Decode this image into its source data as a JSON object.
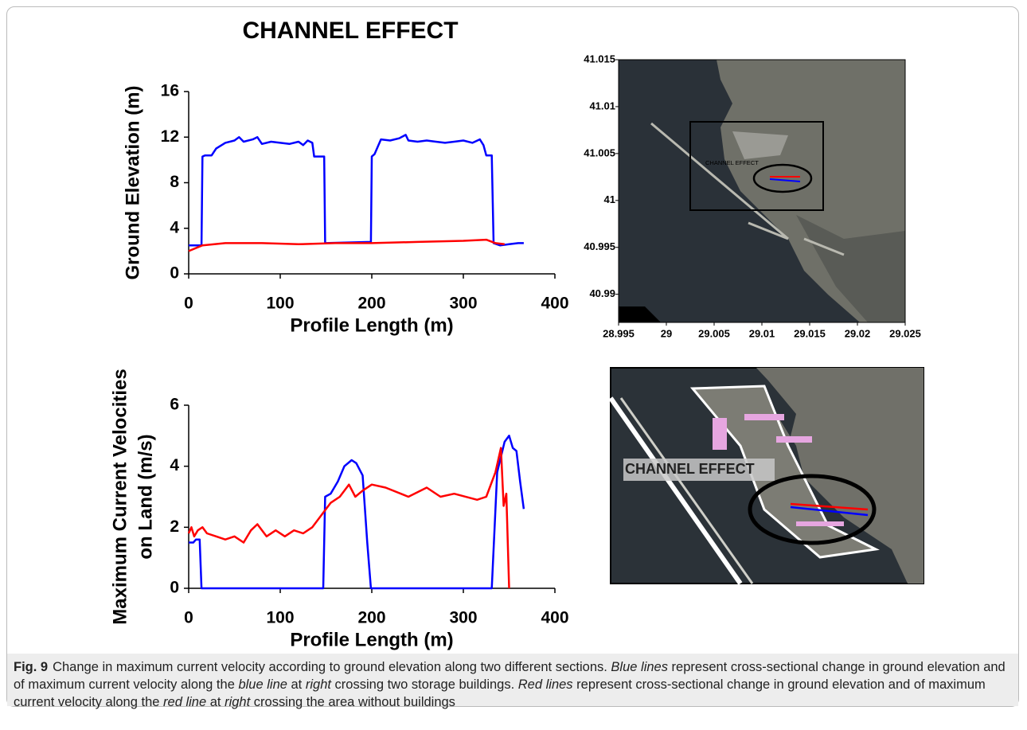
{
  "chart_data": [
    {
      "type": "line",
      "title": "CHANNEL EFFECT",
      "xlabel": "Profile Length (m)",
      "ylabel": [
        "Ground Elevation (m)"
      ],
      "xlim": [
        0,
        400
      ],
      "xticks": [
        0,
        100,
        200,
        300,
        400
      ],
      "ylim": [
        0,
        16
      ],
      "yticks": [
        0,
        4,
        8,
        12,
        16
      ],
      "series": [
        {
          "color": "#0000ff",
          "x": [
            0,
            14,
            15,
            18,
            25,
            30,
            40,
            50,
            55,
            60,
            70,
            75,
            80,
            90,
            100,
            110,
            120,
            125,
            130,
            135,
            137,
            148,
            149,
            199,
            200,
            203,
            210,
            220,
            230,
            237,
            240,
            250,
            260,
            270,
            280,
            290,
            300,
            310,
            318,
            322,
            325,
            331,
            333,
            340,
            350,
            360,
            366
          ],
          "values": [
            2.5,
            2.5,
            10.3,
            10.4,
            10.4,
            11.0,
            11.5,
            11.7,
            12.0,
            11.6,
            11.8,
            12.0,
            11.4,
            11.6,
            11.5,
            11.4,
            11.6,
            11.3,
            11.7,
            11.5,
            10.3,
            10.3,
            2.7,
            2.8,
            10.3,
            10.5,
            11.8,
            11.7,
            11.9,
            12.2,
            11.7,
            11.6,
            11.7,
            11.6,
            11.5,
            11.6,
            11.7,
            11.5,
            11.8,
            11.3,
            10.4,
            10.4,
            2.7,
            2.5,
            2.6,
            2.7,
            2.7
          ]
        },
        {
          "color": "#ff0000",
          "x": [
            0,
            15,
            40,
            80,
            120,
            160,
            200,
            250,
            300,
            325,
            335,
            345
          ],
          "values": [
            2.0,
            2.5,
            2.7,
            2.7,
            2.6,
            2.7,
            2.7,
            2.8,
            2.9,
            3.0,
            2.7,
            2.6
          ]
        }
      ]
    },
    {
      "type": "line",
      "xlabel": "Profile Length (m)",
      "ylabel": [
        "Maximum Current Velocities",
        "on Land (m/s)"
      ],
      "xlim": [
        0,
        400
      ],
      "xticks": [
        0,
        100,
        200,
        300,
        400
      ],
      "ylim": [
        0,
        6
      ],
      "yticks": [
        0,
        2,
        4,
        6
      ],
      "series": [
        {
          "color": "#0000ff",
          "x": [
            0,
            5,
            8,
            12,
            14,
            147,
            149,
            155,
            163,
            170,
            178,
            183,
            190,
            195,
            199,
            331,
            337,
            345,
            350,
            354,
            358,
            362,
            366
          ],
          "values": [
            1.5,
            1.5,
            1.6,
            1.6,
            0,
            0,
            3.0,
            3.1,
            3.5,
            4.0,
            4.2,
            4.1,
            3.7,
            1.5,
            0,
            0,
            3.8,
            4.8,
            5.0,
            4.6,
            4.5,
            3.5,
            2.6
          ]
        },
        {
          "color": "#ff0000",
          "x": [
            0,
            3,
            6,
            10,
            15,
            20,
            30,
            40,
            50,
            60,
            68,
            75,
            85,
            95,
            105,
            115,
            125,
            135,
            145,
            155,
            165,
            175,
            182,
            190,
            200,
            215,
            240,
            260,
            275,
            290,
            315,
            325,
            335,
            341,
            344,
            347,
            350
          ],
          "values": [
            1.8,
            2.0,
            1.7,
            1.9,
            2.0,
            1.8,
            1.7,
            1.6,
            1.7,
            1.5,
            1.9,
            2.1,
            1.7,
            1.9,
            1.7,
            1.9,
            1.8,
            2.0,
            2.4,
            2.8,
            3.0,
            3.4,
            3.0,
            3.2,
            3.4,
            3.3,
            3.0,
            3.3,
            3.0,
            3.1,
            2.9,
            3.0,
            3.8,
            4.6,
            2.7,
            3.1,
            0
          ]
        }
      ]
    },
    {
      "type": "map",
      "annotation": "CHANNEL EFFECT",
      "xlim": [
        28.995,
        29.025
      ],
      "xticks": [
        28.995,
        29,
        29.005,
        29.01,
        29.015,
        29.02,
        29.025
      ],
      "ylim": [
        40.987,
        41.015
      ],
      "yticks": [
        40.99,
        40.995,
        41,
        41.005,
        41.01,
        41.015
      ]
    }
  ],
  "inset": {
    "annotation": "CHANNEL EFFECT"
  },
  "caption": {
    "label": "Fig. 9",
    "runs": [
      {
        "text": "Change in maximum current velocity according to ground elevation along two different sections. ",
        "italic": false
      },
      {
        "text": "Blue lines",
        "italic": true
      },
      {
        "text": " represent cross-sectional change in ground elevation and of maximum current velocity along the ",
        "italic": false
      },
      {
        "text": "blue line",
        "italic": true
      },
      {
        "text": " at ",
        "italic": false
      },
      {
        "text": "right",
        "italic": true
      },
      {
        "text": " crossing two storage buildings. ",
        "italic": false
      },
      {
        "text": "Red lines",
        "italic": true
      },
      {
        "text": " represent cross-sectional change in ground elevation and of maximum current velocity along the ",
        "italic": false
      },
      {
        "text": "red line",
        "italic": true
      },
      {
        "text": " at ",
        "italic": false
      },
      {
        "text": "right",
        "italic": true
      },
      {
        "text": " crossing the area without buildings",
        "italic": false
      }
    ]
  }
}
